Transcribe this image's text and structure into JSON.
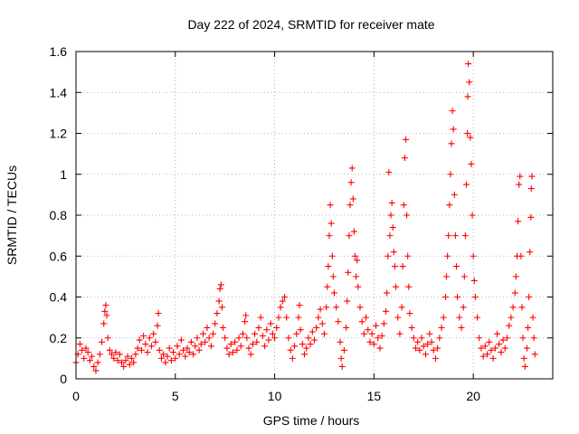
{
  "chart_data": {
    "type": "scatter",
    "title": "Day 222 of 2024, SRMTID for receiver mate",
    "xlabel": "GPS time / hours",
    "ylabel": "SRMTID / TECUs",
    "xlim": [
      0,
      24
    ],
    "ylim": [
      0,
      1.6
    ],
    "xticks": [
      0,
      5,
      10,
      15,
      20
    ],
    "yticks": [
      0,
      0.2,
      0.4,
      0.6,
      0.8,
      1,
      1.2,
      1.4,
      1.6
    ],
    "xtick_labels": [
      "0",
      "5",
      "10",
      "15",
      "20"
    ],
    "ytick_labels": [
      "0",
      "0.2",
      "0.4",
      "0.6",
      "0.8",
      "1",
      "1.2",
      "1.4",
      "1.6"
    ],
    "grid": true,
    "marker": "+",
    "color": "#ff0000",
    "series": [
      {
        "name": "SRMTID",
        "points": [
          [
            0.0,
            0.08
          ],
          [
            0.1,
            0.12
          ],
          [
            0.2,
            0.17
          ],
          [
            0.3,
            0.14
          ],
          [
            0.4,
            0.1
          ],
          [
            0.5,
            0.15
          ],
          [
            0.6,
            0.13
          ],
          [
            0.7,
            0.09
          ],
          [
            0.8,
            0.11
          ],
          [
            0.9,
            0.06
          ],
          [
            1.0,
            0.04
          ],
          [
            1.1,
            0.08
          ],
          [
            1.2,
            0.12
          ],
          [
            1.3,
            0.18
          ],
          [
            1.4,
            0.27
          ],
          [
            1.45,
            0.33
          ],
          [
            1.5,
            0.36
          ],
          [
            1.55,
            0.31
          ],
          [
            1.6,
            0.2
          ],
          [
            1.7,
            0.14
          ],
          [
            1.8,
            0.12
          ],
          [
            1.9,
            0.1
          ],
          [
            2.0,
            0.13
          ],
          [
            2.1,
            0.09
          ],
          [
            2.2,
            0.12
          ],
          [
            2.3,
            0.08
          ],
          [
            2.4,
            0.06
          ],
          [
            2.5,
            0.09
          ],
          [
            2.6,
            0.11
          ],
          [
            2.7,
            0.07
          ],
          [
            2.8,
            0.1
          ],
          [
            2.9,
            0.08
          ],
          [
            3.0,
            0.12
          ],
          [
            3.1,
            0.15
          ],
          [
            3.2,
            0.19
          ],
          [
            3.3,
            0.14
          ],
          [
            3.4,
            0.21
          ],
          [
            3.5,
            0.17
          ],
          [
            3.6,
            0.13
          ],
          [
            3.7,
            0.2
          ],
          [
            3.8,
            0.16
          ],
          [
            3.9,
            0.22
          ],
          [
            4.0,
            0.18
          ],
          [
            4.1,
            0.26
          ],
          [
            4.15,
            0.32
          ],
          [
            4.2,
            0.14
          ],
          [
            4.3,
            0.1
          ],
          [
            4.4,
            0.12
          ],
          [
            4.5,
            0.08
          ],
          [
            4.6,
            0.11
          ],
          [
            4.7,
            0.15
          ],
          [
            4.8,
            0.09
          ],
          [
            4.9,
            0.13
          ],
          [
            5.0,
            0.1
          ],
          [
            5.1,
            0.16
          ],
          [
            5.2,
            0.12
          ],
          [
            5.3,
            0.19
          ],
          [
            5.4,
            0.14
          ],
          [
            5.5,
            0.11
          ],
          [
            5.6,
            0.15
          ],
          [
            5.7,
            0.13
          ],
          [
            5.8,
            0.18
          ],
          [
            5.9,
            0.12
          ],
          [
            6.0,
            0.16
          ],
          [
            6.1,
            0.2
          ],
          [
            6.2,
            0.14
          ],
          [
            6.3,
            0.17
          ],
          [
            6.4,
            0.22
          ],
          [
            6.5,
            0.18
          ],
          [
            6.6,
            0.25
          ],
          [
            6.7,
            0.2
          ],
          [
            6.8,
            0.16
          ],
          [
            6.9,
            0.22
          ],
          [
            7.0,
            0.27
          ],
          [
            7.1,
            0.32
          ],
          [
            7.2,
            0.38
          ],
          [
            7.25,
            0.44
          ],
          [
            7.3,
            0.46
          ],
          [
            7.35,
            0.35
          ],
          [
            7.4,
            0.25
          ],
          [
            7.5,
            0.2
          ],
          [
            7.6,
            0.15
          ],
          [
            7.7,
            0.12
          ],
          [
            7.8,
            0.17
          ],
          [
            7.9,
            0.13
          ],
          [
            8.0,
            0.18
          ],
          [
            8.1,
            0.14
          ],
          [
            8.2,
            0.2
          ],
          [
            8.3,
            0.16
          ],
          [
            8.4,
            0.22
          ],
          [
            8.5,
            0.28
          ],
          [
            8.55,
            0.31
          ],
          [
            8.6,
            0.2
          ],
          [
            8.7,
            0.15
          ],
          [
            8.8,
            0.12
          ],
          [
            8.9,
            0.17
          ],
          [
            9.0,
            0.22
          ],
          [
            9.1,
            0.18
          ],
          [
            9.2,
            0.25
          ],
          [
            9.3,
            0.3
          ],
          [
            9.4,
            0.21
          ],
          [
            9.5,
            0.16
          ],
          [
            9.6,
            0.24
          ],
          [
            9.7,
            0.19
          ],
          [
            9.8,
            0.27
          ],
          [
            9.9,
            0.22
          ],
          [
            10.0,
            0.2
          ],
          [
            10.1,
            0.25
          ],
          [
            10.2,
            0.3
          ],
          [
            10.3,
            0.35
          ],
          [
            10.4,
            0.38
          ],
          [
            10.5,
            0.4
          ],
          [
            10.6,
            0.3
          ],
          [
            10.7,
            0.2
          ],
          [
            10.8,
            0.14
          ],
          [
            10.9,
            0.1
          ],
          [
            11.0,
            0.16
          ],
          [
            11.1,
            0.22
          ],
          [
            11.2,
            0.3
          ],
          [
            11.25,
            0.36
          ],
          [
            11.3,
            0.24
          ],
          [
            11.4,
            0.17
          ],
          [
            11.5,
            0.12
          ],
          [
            11.6,
            0.15
          ],
          [
            11.7,
            0.2
          ],
          [
            11.8,
            0.17
          ],
          [
            11.9,
            0.23
          ],
          [
            12.0,
            0.19
          ],
          [
            12.1,
            0.25
          ],
          [
            12.2,
            0.3
          ],
          [
            12.3,
            0.34
          ],
          [
            12.4,
            0.27
          ],
          [
            12.5,
            0.22
          ],
          [
            12.6,
            0.35
          ],
          [
            12.65,
            0.45
          ],
          [
            12.7,
            0.55
          ],
          [
            12.75,
            0.7
          ],
          [
            12.8,
            0.85
          ],
          [
            12.85,
            0.76
          ],
          [
            12.9,
            0.6
          ],
          [
            12.95,
            0.5
          ],
          [
            13.0,
            0.42
          ],
          [
            13.1,
            0.35
          ],
          [
            13.2,
            0.28
          ],
          [
            13.3,
            0.18
          ],
          [
            13.35,
            0.1
          ],
          [
            13.4,
            0.06
          ],
          [
            13.5,
            0.14
          ],
          [
            13.6,
            0.25
          ],
          [
            13.65,
            0.38
          ],
          [
            13.7,
            0.52
          ],
          [
            13.75,
            0.7
          ],
          [
            13.8,
            0.85
          ],
          [
            13.85,
            0.96
          ],
          [
            13.9,
            1.03
          ],
          [
            13.95,
            0.88
          ],
          [
            14.0,
            0.72
          ],
          [
            14.05,
            0.6
          ],
          [
            14.1,
            0.5
          ],
          [
            14.15,
            0.58
          ],
          [
            14.2,
            0.45
          ],
          [
            14.3,
            0.35
          ],
          [
            14.4,
            0.28
          ],
          [
            14.5,
            0.22
          ],
          [
            14.6,
            0.3
          ],
          [
            14.7,
            0.24
          ],
          [
            14.8,
            0.18
          ],
          [
            14.9,
            0.22
          ],
          [
            15.0,
            0.17
          ],
          [
            15.1,
            0.26
          ],
          [
            15.2,
            0.2
          ],
          [
            15.3,
            0.15
          ],
          [
            15.4,
            0.21
          ],
          [
            15.5,
            0.27
          ],
          [
            15.6,
            0.33
          ],
          [
            15.65,
            0.42
          ],
          [
            15.7,
            0.6
          ],
          [
            15.75,
            1.01
          ],
          [
            15.8,
            0.7
          ],
          [
            15.85,
            0.8
          ],
          [
            15.9,
            0.86
          ],
          [
            15.95,
            0.74
          ],
          [
            16.0,
            0.62
          ],
          [
            16.05,
            0.55
          ],
          [
            16.1,
            0.45
          ],
          [
            16.2,
            0.3
          ],
          [
            16.3,
            0.22
          ],
          [
            16.4,
            0.35
          ],
          [
            16.45,
            0.55
          ],
          [
            16.5,
            0.85
          ],
          [
            16.55,
            1.08
          ],
          [
            16.6,
            1.17
          ],
          [
            16.65,
            0.8
          ],
          [
            16.7,
            0.6
          ],
          [
            16.75,
            0.45
          ],
          [
            16.8,
            0.32
          ],
          [
            16.9,
            0.25
          ],
          [
            17.0,
            0.2
          ],
          [
            17.1,
            0.15
          ],
          [
            17.2,
            0.18
          ],
          [
            17.3,
            0.14
          ],
          [
            17.4,
            0.2
          ],
          [
            17.5,
            0.16
          ],
          [
            17.6,
            0.12
          ],
          [
            17.7,
            0.17
          ],
          [
            17.8,
            0.22
          ],
          [
            17.9,
            0.18
          ],
          [
            18.0,
            0.14
          ],
          [
            18.1,
            0.1
          ],
          [
            18.2,
            0.15
          ],
          [
            18.3,
            0.2
          ],
          [
            18.4,
            0.25
          ],
          [
            18.5,
            0.3
          ],
          [
            18.6,
            0.4
          ],
          [
            18.65,
            0.5
          ],
          [
            18.7,
            0.6
          ],
          [
            18.75,
            0.7
          ],
          [
            18.8,
            0.85
          ],
          [
            18.85,
            1.0
          ],
          [
            18.9,
            1.15
          ],
          [
            18.95,
            1.31
          ],
          [
            19.0,
            1.22
          ],
          [
            19.05,
            0.9
          ],
          [
            19.1,
            0.7
          ],
          [
            19.15,
            0.55
          ],
          [
            19.2,
            0.4
          ],
          [
            19.3,
            0.3
          ],
          [
            19.4,
            0.25
          ],
          [
            19.5,
            0.35
          ],
          [
            19.55,
            0.5
          ],
          [
            19.6,
            0.7
          ],
          [
            19.65,
            0.95
          ],
          [
            19.7,
            1.2
          ],
          [
            19.72,
            1.38
          ],
          [
            19.75,
            1.54
          ],
          [
            19.8,
            1.45
          ],
          [
            19.85,
            1.18
          ],
          [
            19.9,
            1.05
          ],
          [
            19.95,
            0.8
          ],
          [
            20.0,
            0.6
          ],
          [
            20.05,
            0.48
          ],
          [
            20.1,
            0.4
          ],
          [
            20.2,
            0.3
          ],
          [
            20.3,
            0.2
          ],
          [
            20.4,
            0.15
          ],
          [
            20.5,
            0.11
          ],
          [
            20.6,
            0.16
          ],
          [
            20.7,
            0.12
          ],
          [
            20.8,
            0.18
          ],
          [
            20.9,
            0.14
          ],
          [
            21.0,
            0.1
          ],
          [
            21.1,
            0.15
          ],
          [
            21.2,
            0.22
          ],
          [
            21.3,
            0.17
          ],
          [
            21.4,
            0.13
          ],
          [
            21.5,
            0.19
          ],
          [
            21.6,
            0.15
          ],
          [
            21.7,
            0.2
          ],
          [
            21.8,
            0.26
          ],
          [
            21.9,
            0.3
          ],
          [
            22.0,
            0.35
          ],
          [
            22.1,
            0.42
          ],
          [
            22.15,
            0.5
          ],
          [
            22.2,
            0.6
          ],
          [
            22.25,
            0.77
          ],
          [
            22.3,
            0.95
          ],
          [
            22.35,
            0.99
          ],
          [
            22.4,
            0.6
          ],
          [
            22.45,
            0.35
          ],
          [
            22.5,
            0.2
          ],
          [
            22.55,
            0.1
          ],
          [
            22.6,
            0.06
          ],
          [
            22.7,
            0.15
          ],
          [
            22.75,
            0.25
          ],
          [
            22.8,
            0.4
          ],
          [
            22.85,
            0.62
          ],
          [
            22.9,
            0.79
          ],
          [
            22.92,
            0.93
          ],
          [
            22.95,
            0.99
          ],
          [
            23.0,
            0.3
          ],
          [
            23.05,
            0.2
          ],
          [
            23.1,
            0.12
          ]
        ]
      }
    ]
  }
}
